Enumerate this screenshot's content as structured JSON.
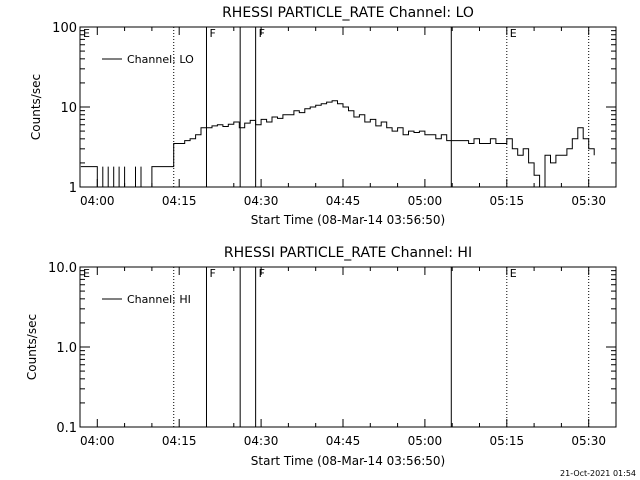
{
  "footer": {
    "timestamp": "21-Oct-2021 01:54"
  },
  "chart_data": [
    {
      "type": "line",
      "title": "RHESSI PARTICLE_RATE Channel: LO",
      "xlabel": "Start Time (08-Mar-14 03:56:50)",
      "ylabel": "Counts/sec",
      "yscale": "log",
      "ylim": [
        1,
        100
      ],
      "yticks": [
        "1",
        "10",
        "100"
      ],
      "xlim": [
        "03:56:50",
        "05:35:00"
      ],
      "xticks": [
        "04:00",
        "04:15",
        "04:30",
        "04:45",
        "05:00",
        "05:15",
        "05:30"
      ],
      "legend": {
        "position": "top-left",
        "entry": "Channel: LO"
      },
      "markers": [
        {
          "label": "E",
          "time": "03:56:50",
          "style": "dotted"
        },
        {
          "label": "",
          "time": "04:14:00",
          "style": "dotted"
        },
        {
          "label": "F",
          "time": "04:20:00",
          "style": "solid"
        },
        {
          "label": "",
          "time": "04:26:10",
          "style": "solid"
        },
        {
          "label": "F",
          "time": "04:29:00",
          "style": "solid"
        },
        {
          "label": "",
          "time": "05:04:50",
          "style": "solid"
        },
        {
          "label": "E",
          "time": "05:15:00",
          "style": "dotted"
        },
        {
          "label": "",
          "time": "05:30:00",
          "style": "dotted"
        }
      ],
      "series": [
        {
          "name": "Channel: LO",
          "x": [
            "03:57",
            "04:00",
            "04:00",
            "04:01",
            "04:01",
            "04:02",
            "04:02",
            "04:03",
            "04:03",
            "04:04",
            "04:04",
            "04:05",
            "04:05",
            "04:06",
            "04:07",
            "04:07",
            "04:08",
            "04:08",
            "04:09",
            "04:09",
            "04:10",
            "04:11",
            "04:11",
            "04:12",
            "04:13",
            "04:14",
            "04:14",
            "04:16",
            "04:17",
            "04:18",
            "04:19",
            "04:21",
            "04:22",
            "04:23",
            "04:24",
            "04:25",
            "04:26",
            "04:27",
            "04:28",
            "04:29",
            "04:30",
            "04:31",
            "04:32",
            "04:33",
            "04:34",
            "04:36",
            "04:37",
            "04:38",
            "04:39",
            "04:40",
            "04:41",
            "04:42",
            "04:43",
            "04:44",
            "04:45",
            "04:46",
            "04:47",
            "04:48",
            "04:49",
            "04:50",
            "04:51",
            "04:52",
            "04:53",
            "04:54",
            "04:55",
            "04:56",
            "04:57",
            "04:58",
            "04:59",
            "05:00",
            "05:01",
            "05:02",
            "05:03",
            "05:04",
            "05:05",
            "05:06",
            "05:07",
            "05:08",
            "05:09",
            "05:10",
            "05:11",
            "05:12",
            "05:13",
            "05:14",
            "05:15",
            "05:16",
            "05:17",
            "05:18",
            "05:19",
            "05:20",
            "05:21",
            "05:22",
            "05:23",
            "05:24",
            "05:25",
            "05:26",
            "05:27",
            "05:28",
            "05:29",
            "05:30",
            "05:31"
          ],
          "y": [
            1.8,
            1.8,
            1.0,
            1.8,
            1.0,
            1.8,
            1.0,
            1.8,
            1.0,
            1.8,
            1.0,
            1.8,
            1.0,
            1.0,
            1.8,
            1.0,
            1.8,
            1.0,
            1.0,
            1.0,
            1.8,
            1.8,
            1.8,
            1.8,
            1.8,
            1.8,
            3.5,
            3.8,
            4.0,
            4.5,
            5.5,
            5.8,
            6.0,
            5.7,
            6.1,
            6.5,
            5.5,
            6.3,
            6.8,
            6.0,
            7.0,
            6.5,
            7.5,
            7.2,
            8.0,
            9.0,
            8.5,
            9.5,
            10.0,
            10.5,
            11.0,
            11.5,
            12.0,
            11.0,
            10.0,
            9.0,
            7.5,
            8.0,
            6.5,
            7.0,
            5.8,
            6.5,
            5.5,
            5.0,
            5.5,
            4.5,
            5.0,
            4.8,
            5.0,
            4.5,
            4.5,
            4.0,
            4.5,
            3.8,
            3.8,
            3.8,
            3.8,
            3.5,
            4.0,
            3.5,
            3.5,
            4.0,
            3.5,
            3.5,
            4.0,
            3.0,
            2.5,
            3.0,
            2.0,
            1.4,
            1.0,
            2.5,
            2.0,
            2.5,
            2.5,
            3.0,
            4.0,
            5.5,
            4.0,
            3.0,
            2.5
          ]
        }
      ]
    },
    {
      "type": "line",
      "title": "RHESSI PARTICLE_RATE Channel: HI",
      "xlabel": "Start Time (08-Mar-14 03:56:50)",
      "ylabel": "Counts/sec",
      "yscale": "log",
      "ylim": [
        0.1,
        10.0
      ],
      "yticks": [
        "0.1",
        "1.0",
        "10.0"
      ],
      "xlim": [
        "03:56:50",
        "05:35:00"
      ],
      "xticks": [
        "04:00",
        "04:15",
        "04:30",
        "04:45",
        "05:00",
        "05:15",
        "05:30"
      ],
      "legend": {
        "position": "top-left",
        "entry": "Channel: HI"
      },
      "markers": [
        {
          "label": "E",
          "time": "03:56:50",
          "style": "dotted"
        },
        {
          "label": "",
          "time": "04:14:00",
          "style": "dotted"
        },
        {
          "label": "F",
          "time": "04:20:00",
          "style": "solid"
        },
        {
          "label": "",
          "time": "04:26:10",
          "style": "solid"
        },
        {
          "label": "F",
          "time": "04:29:00",
          "style": "solid"
        },
        {
          "label": "",
          "time": "05:04:50",
          "style": "solid"
        },
        {
          "label": "E",
          "time": "05:15:00",
          "style": "dotted"
        },
        {
          "label": "",
          "time": "05:30:00",
          "style": "dotted"
        }
      ],
      "series": [
        {
          "name": "Channel: HI",
          "x": [],
          "y": []
        }
      ]
    }
  ]
}
